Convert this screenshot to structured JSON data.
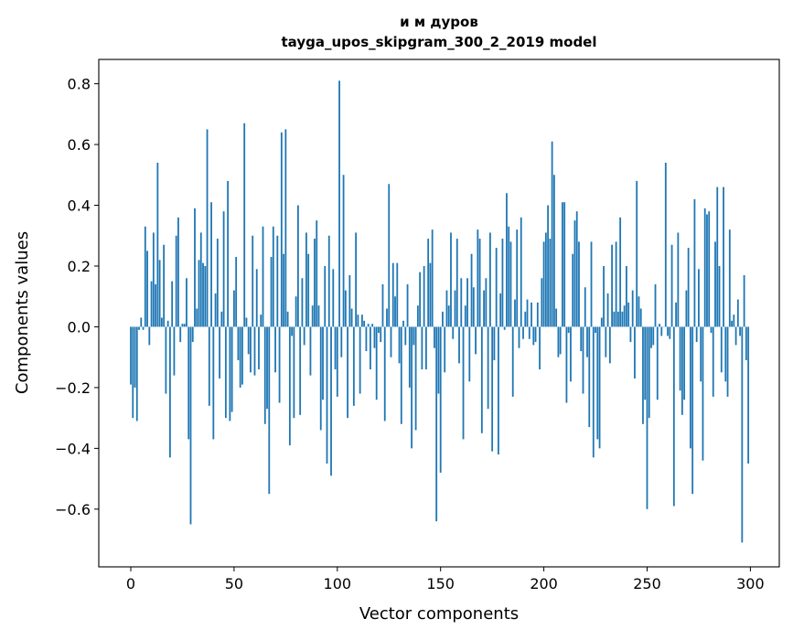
{
  "chart_data": {
    "type": "bar",
    "title": "и м дуров",
    "subtitle": "tayga_upos_skipgram_300_2_2019 model",
    "xlabel": "Vector components",
    "ylabel": "Components values",
    "xlim": [
      -15.5,
      314
    ],
    "ylim": [
      -0.79,
      0.88
    ],
    "xticks": [
      0,
      50,
      100,
      150,
      200,
      250,
      300
    ],
    "xtick_labels": [
      "0",
      "50",
      "100",
      "150",
      "200",
      "250",
      "300"
    ],
    "yticks": [
      -0.6,
      -0.4,
      -0.2,
      0.0,
      0.2,
      0.4,
      0.6,
      0.8
    ],
    "ytick_labels": [
      "−0.6",
      "−0.4",
      "−0.2",
      "0.0",
      "0.2",
      "0.4",
      "0.6",
      "0.8"
    ],
    "grid": false,
    "bar_color": "#1f77b4",
    "values": [
      -0.19,
      -0.3,
      -0.2,
      -0.31,
      -0.01,
      0.03,
      -0.01,
      0.33,
      0.25,
      -0.06,
      0.15,
      0.31,
      0.14,
      0.54,
      0.22,
      0.03,
      0.27,
      -0.22,
      0.02,
      -0.43,
      0.15,
      -0.16,
      0.3,
      0.36,
      -0.05,
      0.01,
      0.01,
      0.16,
      -0.37,
      -0.65,
      -0.05,
      0.39,
      0.06,
      0.22,
      0.31,
      0.21,
      0.2,
      0.65,
      -0.26,
      0.41,
      -0.37,
      0.11,
      0.29,
      -0.17,
      0.05,
      0.38,
      -0.3,
      0.48,
      -0.31,
      -0.28,
      0.12,
      0.23,
      -0.11,
      -0.2,
      -0.19,
      0.67,
      0.03,
      -0.09,
      -0.15,
      0.3,
      -0.16,
      0.19,
      -0.14,
      0.04,
      0.33,
      -0.32,
      -0.27,
      -0.55,
      0.23,
      0.33,
      -0.15,
      0.3,
      -0.25,
      0.64,
      0.24,
      0.65,
      0.05,
      -0.39,
      -0.03,
      -0.3,
      0.1,
      0.4,
      -0.29,
      0.16,
      -0.06,
      0.31,
      0.24,
      -0.16,
      0.07,
      0.29,
      0.35,
      0.07,
      -0.34,
      -0.24,
      0.2,
      -0.45,
      0.3,
      -0.49,
      0.19,
      -0.14,
      -0.23,
      0.81,
      -0.1,
      0.5,
      0.12,
      -0.3,
      0.17,
      0.06,
      -0.26,
      0.31,
      0.04,
      -0.22,
      0.04,
      0.02,
      -0.08,
      0.01,
      -0.14,
      0.01,
      -0.07,
      -0.24,
      -0.02,
      -0.05,
      0.14,
      -0.31,
      0.06,
      0.47,
      -0.1,
      0.21,
      0.1,
      0.21,
      -0.12,
      -0.32,
      0.02,
      -0.06,
      0.14,
      -0.2,
      -0.4,
      -0.06,
      -0.34,
      0.07,
      0.18,
      -0.14,
      0.2,
      -0.14,
      0.29,
      0.21,
      0.32,
      -0.07,
      -0.64,
      -0.22,
      -0.48,
      0.05,
      -0.15,
      0.12,
      0.07,
      0.31,
      -0.04,
      0.12,
      0.29,
      -0.12,
      0.16,
      -0.37,
      0.07,
      0.16,
      -0.18,
      0.24,
      0.13,
      -0.09,
      0.32,
      0.29,
      -0.35,
      0.12,
      0.16,
      -0.27,
      0.31,
      -0.41,
      -0.11,
      0.26,
      -0.42,
      0.11,
      0.29,
      -0.01,
      0.44,
      0.33,
      0.28,
      -0.23,
      0.09,
      0.32,
      -0.07,
      0.36,
      -0.04,
      0.05,
      0.09,
      -0.04,
      0.08,
      -0.06,
      -0.05,
      0.08,
      -0.14,
      0.16,
      0.28,
      0.31,
      0.4,
      0.29,
      0.61,
      0.5,
      0.06,
      -0.1,
      -0.09,
      0.41,
      0.41,
      -0.25,
      -0.02,
      -0.18,
      0.24,
      0.35,
      0.38,
      0.28,
      -0.08,
      -0.22,
      0.13,
      -0.1,
      -0.33,
      0.28,
      -0.43,
      -0.02,
      -0.37,
      -0.4,
      0.03,
      0.2,
      -0.1,
      0.11,
      -0.12,
      0.27,
      0.05,
      0.28,
      0.05,
      0.36,
      0.05,
      0.07,
      0.2,
      0.08,
      -0.05,
      0.12,
      -0.17,
      0.48,
      0.1,
      0.06,
      -0.32,
      -0.24,
      -0.6,
      -0.3,
      -0.07,
      -0.06,
      0.14,
      -0.24,
      0.01,
      -0.03,
      0.0,
      0.54,
      -0.03,
      -0.04,
      0.27,
      -0.59,
      0.08,
      0.31,
      -0.21,
      -0.29,
      -0.24,
      0.12,
      0.26,
      -0.4,
      -0.55,
      0.42,
      -0.05,
      0.19,
      -0.18,
      -0.44,
      0.39,
      0.37,
      0.38,
      -0.02,
      -0.23,
      0.28,
      0.46,
      0.2,
      -0.15,
      0.46,
      -0.18,
      -0.23,
      0.32,
      0.02,
      0.04,
      -0.06,
      0.09,
      -0.03,
      -0.71,
      0.17,
      -0.11,
      -0.45
    ]
  }
}
